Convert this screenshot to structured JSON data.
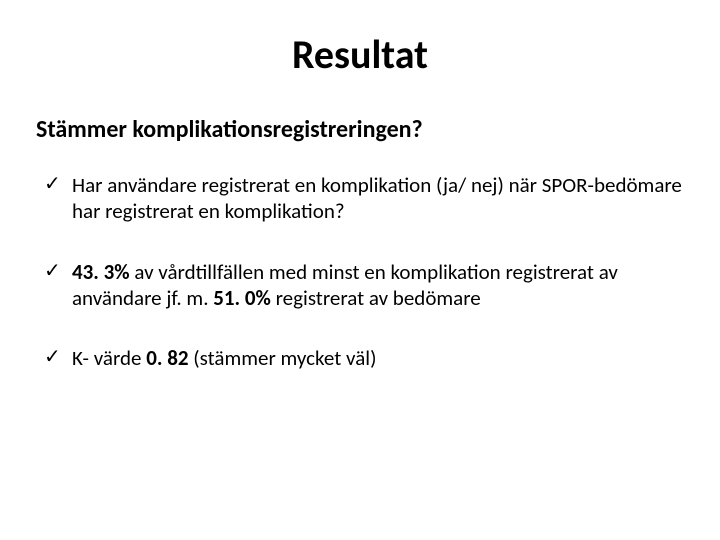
{
  "title": "Resultat",
  "subtitle": "Stämmer komplikationsregistreringen?",
  "checkmark": "✓",
  "bullets": {
    "b1": {
      "text": "Har användare registrerat en komplikation (ja/ nej) när SPOR-bedömare har registrerat en komplikation?"
    },
    "b2": {
      "pct1": "43. 3%",
      "mid1": " av vårdtillfällen med minst en komplikation registrerat av användare jf. m. ",
      "pct2": "51. 0%",
      "tail": " registrerat av bedömare"
    },
    "b3": {
      "lead": "K- värde ",
      "val": "0. 82",
      "tail": " (stämmer mycket väl)"
    }
  }
}
